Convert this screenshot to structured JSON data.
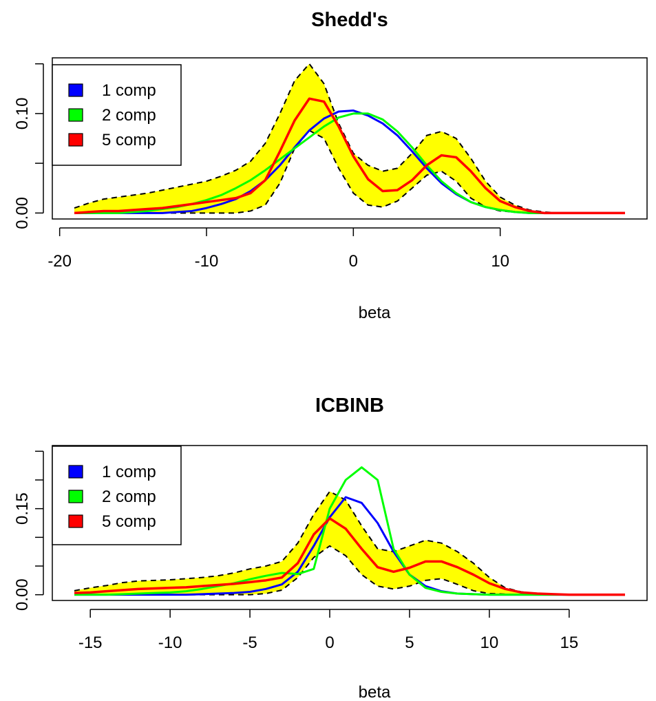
{
  "chart_data": [
    {
      "type": "line",
      "title": "Shedd's",
      "xlabel": "beta",
      "ylabel": "",
      "xlim": [
        -19,
        18.5
      ],
      "ylim": [
        0,
        0.15
      ],
      "xticks": [
        -20,
        -10,
        0,
        10
      ],
      "xtick_labels": [
        "-20",
        "-10",
        "0",
        "10"
      ],
      "yticks": [
        0,
        0.05,
        0.1,
        0.15
      ],
      "ytick_labels": [
        "0.00",
        "",
        "0.10",
        ""
      ],
      "legend_position": "top-left",
      "x": [
        -19,
        -18,
        -17,
        -16,
        -15,
        -14,
        -13,
        -12,
        -11,
        -10,
        -9,
        -8,
        -7,
        -6,
        -5,
        -4,
        -3,
        -2,
        -1,
        0,
        1,
        2,
        3,
        4,
        5,
        6,
        7,
        8,
        9,
        10,
        11,
        12,
        13,
        14,
        15,
        16,
        17,
        18.5
      ],
      "band": {
        "color": "#ffff00",
        "lower": [
          0,
          0,
          0,
          0,
          0,
          0,
          0,
          0,
          0,
          0,
          0,
          0,
          0.002,
          0.008,
          0.03,
          0.065,
          0.083,
          0.075,
          0.045,
          0.02,
          0.008,
          0.006,
          0.012,
          0.025,
          0.038,
          0.042,
          0.032,
          0.015,
          0.006,
          0.002,
          0.001,
          0,
          0,
          0,
          0,
          0,
          0,
          0
        ],
        "upper": [
          0.005,
          0.01,
          0.014,
          0.016,
          0.018,
          0.02,
          0.023,
          0.026,
          0.029,
          0.032,
          0.037,
          0.043,
          0.052,
          0.07,
          0.1,
          0.133,
          0.15,
          0.13,
          0.09,
          0.06,
          0.048,
          0.042,
          0.045,
          0.06,
          0.078,
          0.082,
          0.075,
          0.055,
          0.032,
          0.016,
          0.008,
          0.003,
          0.001,
          0,
          0,
          0,
          0,
          0
        ]
      },
      "series": [
        {
          "name": "1 comp",
          "color": "#0000ff",
          "values": [
            0,
            0,
            0,
            0,
            0,
            0,
            0,
            0.001,
            0.002,
            0.005,
            0.009,
            0.014,
            0.022,
            0.033,
            0.048,
            0.066,
            0.083,
            0.095,
            0.102,
            0.103,
            0.098,
            0.09,
            0.078,
            0.062,
            0.045,
            0.03,
            0.019,
            0.011,
            0.006,
            0.003,
            0.001,
            0,
            0,
            0,
            0,
            0,
            0,
            0
          ]
        },
        {
          "name": "2 comp",
          "color": "#00ff00",
          "values": [
            0,
            0,
            0,
            0,
            0.001,
            0.002,
            0.004,
            0.006,
            0.009,
            0.013,
            0.018,
            0.025,
            0.033,
            0.043,
            0.054,
            0.065,
            0.076,
            0.087,
            0.096,
            0.1,
            0.1,
            0.094,
            0.082,
            0.066,
            0.048,
            0.032,
            0.02,
            0.011,
            0.006,
            0.003,
            0.001,
            0,
            0,
            0,
            0,
            0,
            0,
            0
          ]
        },
        {
          "name": "5 comp",
          "color": "#ff0000",
          "values": [
            0,
            0.001,
            0.002,
            0.002,
            0.003,
            0.004,
            0.005,
            0.007,
            0.009,
            0.011,
            0.013,
            0.015,
            0.02,
            0.033,
            0.062,
            0.093,
            0.115,
            0.112,
            0.087,
            0.057,
            0.034,
            0.022,
            0.023,
            0.033,
            0.048,
            0.058,
            0.056,
            0.042,
            0.025,
            0.012,
            0.006,
            0.002,
            0,
            0,
            0,
            0,
            0,
            0
          ]
        }
      ]
    },
    {
      "type": "line",
      "title": "ICBINB",
      "xlabel": "beta",
      "ylabel": "",
      "xlim": [
        -16,
        18.5
      ],
      "ylim": [
        0,
        0.25
      ],
      "xticks": [
        -15,
        -10,
        -5,
        0,
        5,
        10,
        15
      ],
      "xtick_labels": [
        "-15",
        "-10",
        "-5",
        "0",
        "5",
        "10",
        "15"
      ],
      "yticks": [
        0,
        0.05,
        0.1,
        0.15,
        0.2,
        0.25
      ],
      "ytick_labels": [
        "0.00",
        "",
        "",
        "0.15",
        "",
        ""
      ],
      "legend_position": "top-left",
      "x": [
        -16,
        -15,
        -14,
        -13,
        -12,
        -11,
        -10,
        -9,
        -8,
        -7,
        -6,
        -5,
        -4,
        -3,
        -2,
        -1,
        0,
        1,
        2,
        3,
        4,
        5,
        6,
        7,
        8,
        9,
        10,
        11,
        12,
        13,
        14,
        15,
        16,
        17,
        18.5
      ],
      "band": {
        "color": "#ffff00",
        "lower": [
          0,
          0,
          0,
          0,
          0,
          0,
          0,
          0,
          0,
          0,
          0,
          0,
          0.002,
          0.008,
          0.03,
          0.065,
          0.085,
          0.068,
          0.035,
          0.015,
          0.01,
          0.015,
          0.025,
          0.028,
          0.018,
          0.007,
          0.002,
          0.001,
          0,
          0,
          0,
          0,
          0,
          0,
          0
        ],
        "upper": [
          0.007,
          0.012,
          0.016,
          0.021,
          0.024,
          0.025,
          0.026,
          0.028,
          0.03,
          0.033,
          0.038,
          0.045,
          0.05,
          0.058,
          0.09,
          0.14,
          0.18,
          0.165,
          0.12,
          0.08,
          0.075,
          0.085,
          0.095,
          0.09,
          0.075,
          0.055,
          0.03,
          0.012,
          0.005,
          0.002,
          0.001,
          0,
          0,
          0,
          0
        ]
      },
      "series": [
        {
          "name": "1 comp",
          "color": "#0000ff",
          "values": [
            0,
            0,
            0,
            0,
            0,
            0,
            0,
            0,
            0.001,
            0.002,
            0.003,
            0.005,
            0.01,
            0.018,
            0.04,
            0.085,
            0.135,
            0.17,
            0.16,
            0.125,
            0.075,
            0.035,
            0.015,
            0.006,
            0.002,
            0.001,
            0,
            0,
            0,
            0,
            0,
            0,
            0,
            0,
            0
          ]
        },
        {
          "name": "2 comp",
          "color": "#00ff00",
          "values": [
            0,
            0,
            0,
            0.001,
            0.002,
            0.003,
            0.004,
            0.006,
            0.01,
            0.015,
            0.02,
            0.027,
            0.033,
            0.038,
            0.036,
            0.045,
            0.15,
            0.2,
            0.222,
            0.2,
            0.08,
            0.035,
            0.012,
            0.005,
            0.002,
            0.001,
            0,
            0,
            0,
            0,
            0,
            0,
            0,
            0,
            0
          ]
        },
        {
          "name": "5 comp",
          "color": "#ff0000",
          "values": [
            0.003,
            0.004,
            0.006,
            0.008,
            0.01,
            0.011,
            0.012,
            0.013,
            0.015,
            0.017,
            0.019,
            0.022,
            0.025,
            0.03,
            0.055,
            0.105,
            0.133,
            0.115,
            0.08,
            0.048,
            0.04,
            0.047,
            0.058,
            0.058,
            0.048,
            0.035,
            0.02,
            0.01,
            0.004,
            0.002,
            0.001,
            0,
            0,
            0,
            0
          ]
        }
      ]
    }
  ]
}
